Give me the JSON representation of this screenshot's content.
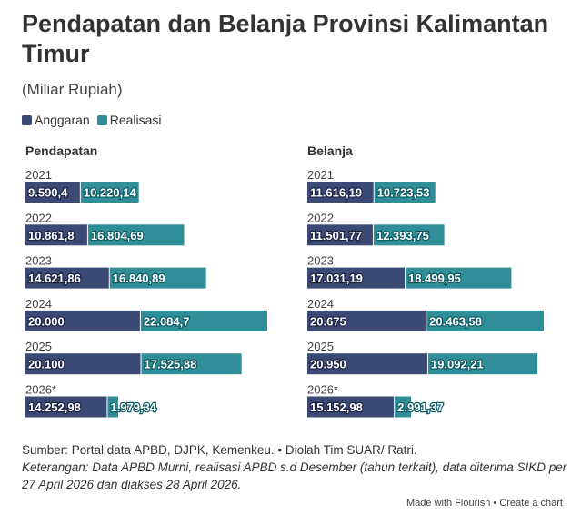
{
  "title": "Pendapatan dan Belanja Provinsi Kalimantan Timur",
  "subtitle": "(Miliar Rupiah)",
  "colors": {
    "anggaran": "#3b4a74",
    "realisasi": "#2f8e98"
  },
  "chart_data": {
    "type": "bar",
    "stacked": true,
    "orientation": "horizontal",
    "legend": [
      "Anggaran",
      "Realisasi"
    ],
    "legend_position": "top-left",
    "categories": [
      "2021",
      "2022",
      "2023",
      "2024",
      "2025",
      "2026*"
    ],
    "panels": [
      {
        "title": "Pendapatan",
        "series": [
          {
            "name": "Anggaran",
            "values": [
              9590.4,
              10861.8,
              14621.86,
              20000,
              20100,
              14252.98
            ],
            "labels": [
              "9.590,4",
              "10.861,8",
              "14.621,86",
              "20.000",
              "20.100",
              "14.252,98"
            ]
          },
          {
            "name": "Realisasi",
            "values": [
              10220.14,
              16804.69,
              16840.89,
              22084.7,
              17525.88,
              1979.34
            ],
            "labels": [
              "10.220,14",
              "16.804,69",
              "16.840,89",
              "22.084,7",
              "17.525,88",
              "1.979,34"
            ]
          }
        ]
      },
      {
        "title": "Belanja",
        "series": [
          {
            "name": "Anggaran",
            "values": [
              11616.19,
              11501.77,
              17031.19,
              20675,
              20950,
              15152.98
            ],
            "labels": [
              "11.616,19",
              "11.501,77",
              "17.031,19",
              "20.675",
              "20.950",
              "15.152,98"
            ]
          },
          {
            "name": "Realisasi",
            "values": [
              10723.53,
              12393.75,
              18499.95,
              20463.58,
              19092.21,
              2991.37
            ],
            "labels": [
              "10.723,53",
              "12.393,75",
              "18.499,95",
              "20.463,58",
              "19.092,21",
              "2.991,37"
            ]
          }
        ]
      }
    ]
  },
  "footer": {
    "source": "Sumber: Portal data APBD, DJPK, Kemenkeu. • Diolah Tim SUAR/ Ratri.",
    "note": "Keterangan: Data APBD Murni, realisasi APBD s.d Desember (tahun terkait), data diterima SIKD per 27 April 2026 dan diakses 28 April 2026."
  },
  "credit": "Made with Flourish • Create a chart"
}
